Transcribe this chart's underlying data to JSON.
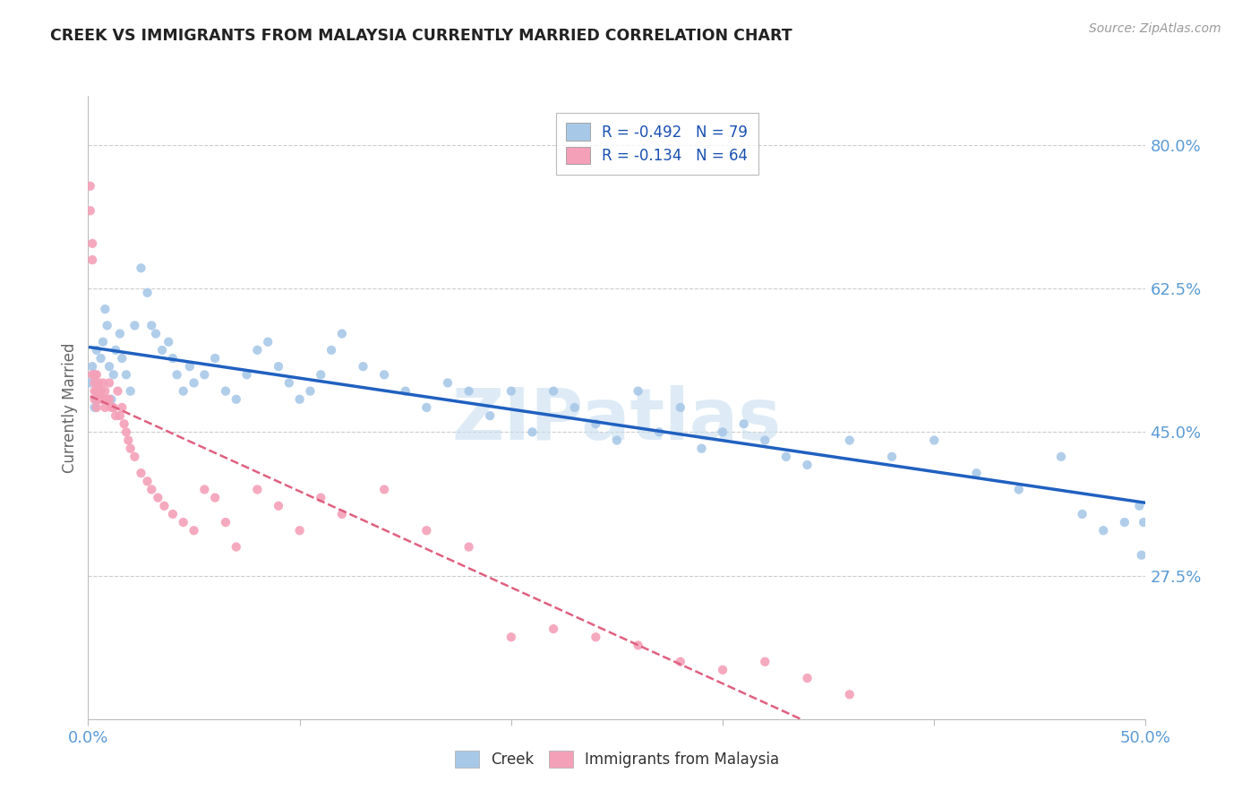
{
  "title": "CREEK VS IMMIGRANTS FROM MALAYSIA CURRENTLY MARRIED CORRELATION CHART",
  "source": "Source: ZipAtlas.com",
  "ylabel": "Currently Married",
  "right_yticks": [
    0.275,
    0.45,
    0.625,
    0.8
  ],
  "right_yticklabels": [
    "27.5%",
    "45.0%",
    "62.5%",
    "80.0%"
  ],
  "xlim": [
    0.0,
    0.5
  ],
  "ylim": [
    0.1,
    0.86
  ],
  "xtick_positions": [
    0.0,
    0.1,
    0.2,
    0.3,
    0.4,
    0.5
  ],
  "xtick_labels_show": [
    "0.0%",
    "",
    "",
    "",
    "",
    "50.0%"
  ],
  "creek_R": -0.492,
  "creek_N": 79,
  "malaysia_R": -0.134,
  "malaysia_N": 64,
  "creek_color": "#a8c8e8",
  "malaysia_color": "#f4a0b8",
  "trend_creek_color": "#2060c0",
  "trend_malaysia_color": "#e06080",
  "legend_r_color": "#2060c0",
  "watermark": "ZIPatlas",
  "watermark_color": "#c8dff0",
  "background_color": "#ffffff",
  "grid_color": "#cccccc",
  "axis_label_color": "#5b9bd5",
  "title_color": "#222222",
  "source_color": "#999999",
  "ylabel_color": "#666666",
  "creek_x": [
    0.001,
    0.002,
    0.003,
    0.003,
    0.004,
    0.004,
    0.005,
    0.006,
    0.007,
    0.008,
    0.009,
    0.01,
    0.011,
    0.012,
    0.013,
    0.015,
    0.016,
    0.018,
    0.02,
    0.022,
    0.025,
    0.028,
    0.03,
    0.032,
    0.035,
    0.038,
    0.04,
    0.042,
    0.045,
    0.048,
    0.05,
    0.055,
    0.06,
    0.065,
    0.07,
    0.075,
    0.08,
    0.085,
    0.09,
    0.095,
    0.1,
    0.105,
    0.11,
    0.115,
    0.12,
    0.13,
    0.14,
    0.15,
    0.16,
    0.17,
    0.18,
    0.19,
    0.2,
    0.21,
    0.22,
    0.23,
    0.24,
    0.25,
    0.26,
    0.27,
    0.28,
    0.29,
    0.3,
    0.31,
    0.32,
    0.33,
    0.34,
    0.36,
    0.38,
    0.4,
    0.42,
    0.44,
    0.46,
    0.47,
    0.48,
    0.49,
    0.497,
    0.498,
    0.499
  ],
  "creek_y": [
    0.51,
    0.53,
    0.52,
    0.48,
    0.55,
    0.49,
    0.5,
    0.54,
    0.56,
    0.6,
    0.58,
    0.53,
    0.49,
    0.52,
    0.55,
    0.57,
    0.54,
    0.52,
    0.5,
    0.58,
    0.65,
    0.62,
    0.58,
    0.57,
    0.55,
    0.56,
    0.54,
    0.52,
    0.5,
    0.53,
    0.51,
    0.52,
    0.54,
    0.5,
    0.49,
    0.52,
    0.55,
    0.56,
    0.53,
    0.51,
    0.49,
    0.5,
    0.52,
    0.55,
    0.57,
    0.53,
    0.52,
    0.5,
    0.48,
    0.51,
    0.5,
    0.47,
    0.5,
    0.45,
    0.5,
    0.48,
    0.46,
    0.44,
    0.5,
    0.45,
    0.48,
    0.43,
    0.45,
    0.46,
    0.44,
    0.42,
    0.41,
    0.44,
    0.42,
    0.44,
    0.4,
    0.38,
    0.42,
    0.35,
    0.33,
    0.34,
    0.36,
    0.3,
    0.34
  ],
  "malaysia_x": [
    0.001,
    0.001,
    0.002,
    0.002,
    0.002,
    0.003,
    0.003,
    0.003,
    0.003,
    0.004,
    0.004,
    0.004,
    0.005,
    0.005,
    0.005,
    0.006,
    0.006,
    0.007,
    0.007,
    0.008,
    0.008,
    0.009,
    0.01,
    0.01,
    0.011,
    0.012,
    0.013,
    0.014,
    0.015,
    0.016,
    0.017,
    0.018,
    0.019,
    0.02,
    0.022,
    0.025,
    0.028,
    0.03,
    0.033,
    0.036,
    0.04,
    0.045,
    0.05,
    0.055,
    0.06,
    0.065,
    0.07,
    0.08,
    0.09,
    0.1,
    0.11,
    0.12,
    0.14,
    0.16,
    0.18,
    0.2,
    0.22,
    0.24,
    0.26,
    0.28,
    0.3,
    0.32,
    0.34,
    0.36
  ],
  "malaysia_y": [
    0.75,
    0.72,
    0.68,
    0.66,
    0.52,
    0.51,
    0.5,
    0.52,
    0.49,
    0.52,
    0.5,
    0.48,
    0.51,
    0.5,
    0.49,
    0.5,
    0.49,
    0.51,
    0.49,
    0.5,
    0.48,
    0.49,
    0.51,
    0.49,
    0.48,
    0.48,
    0.47,
    0.5,
    0.47,
    0.48,
    0.46,
    0.45,
    0.44,
    0.43,
    0.42,
    0.4,
    0.39,
    0.38,
    0.37,
    0.36,
    0.35,
    0.34,
    0.33,
    0.38,
    0.37,
    0.34,
    0.31,
    0.38,
    0.36,
    0.33,
    0.37,
    0.35,
    0.38,
    0.33,
    0.31,
    0.2,
    0.21,
    0.2,
    0.19,
    0.17,
    0.16,
    0.17,
    0.15,
    0.13
  ]
}
